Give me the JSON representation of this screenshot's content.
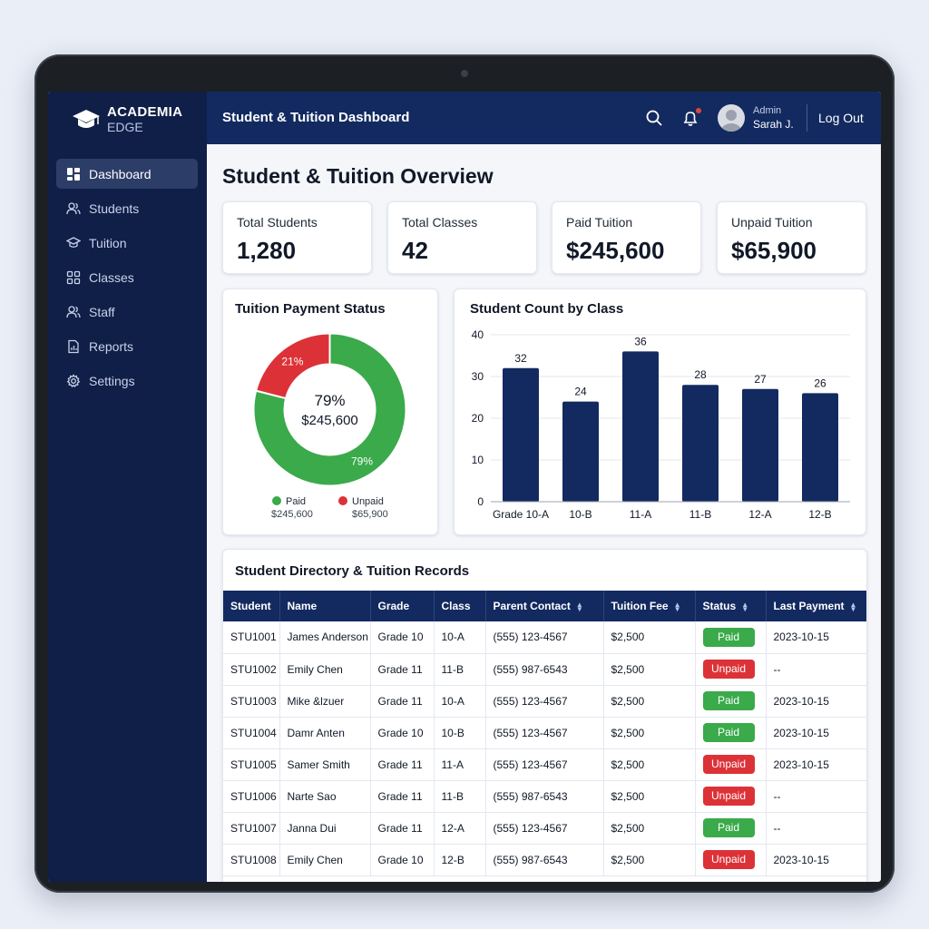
{
  "brand": {
    "line1": "ACADEMIA",
    "line2": "EDGE"
  },
  "sidebar": {
    "items": [
      {
        "label": "Dashboard",
        "icon": "dashboard-icon",
        "active": true
      },
      {
        "label": "Students",
        "icon": "users-icon"
      },
      {
        "label": "Tuition",
        "icon": "graduation-cap-icon"
      },
      {
        "label": "Classes",
        "icon": "grid-icon"
      },
      {
        "label": "Staff",
        "icon": "staff-icon"
      },
      {
        "label": "Reports",
        "icon": "report-icon"
      },
      {
        "label": "Settings",
        "icon": "gear-icon"
      }
    ]
  },
  "header": {
    "title": "Student & Tuition Dashboard",
    "user_role": "Admin",
    "user_name": "Sarah J.",
    "logout_label": "Log Out"
  },
  "main": {
    "title": "Student & Tuition Overview",
    "stats": [
      {
        "label": "Total Students",
        "value": "1,280"
      },
      {
        "label": "Total Classes",
        "value": "42"
      },
      {
        "label": "Paid Tuition",
        "value": "$245,600"
      },
      {
        "label": "Unpaid Tuition",
        "value": "$65,900"
      }
    ]
  },
  "colors": {
    "paid": "#3aaa4b",
    "unpaid": "#dc3237",
    "navy": "#132a60",
    "bar": "#132a60"
  },
  "chart_data": [
    {
      "type": "pie",
      "title": "Tuition Payment Status",
      "center_percent": "79%",
      "center_amount": "$245,600",
      "slices": [
        {
          "name": "Paid",
          "value": 79,
          "label": "79%",
          "amount": "$245,600"
        },
        {
          "name": "Unpaid",
          "value": 21,
          "label": "21%",
          "amount": "$65,900"
        }
      ]
    },
    {
      "type": "bar",
      "title": "Student Count by Class",
      "categories": [
        "Grade 10-A",
        "10-B",
        "11-A",
        "11-B",
        "12-A",
        "12-B"
      ],
      "values": [
        32,
        24,
        36,
        28,
        27,
        26
      ],
      "ylim": [
        0,
        40
      ],
      "yticks": [
        0,
        10,
        20,
        30,
        40
      ],
      "grid": true
    }
  ],
  "table": {
    "title": "Student Directory & Tuition Records",
    "columns": [
      "Student",
      "Name",
      "Grade",
      "Class",
      "Parent Contact",
      "Tuition Fee",
      "Status",
      "Last Payment"
    ],
    "rows": [
      [
        "STU1001",
        "James Anderson",
        "Grade 10",
        "10-A",
        "(555) 123-4567",
        "$2,500",
        "Paid",
        "2023-10-15"
      ],
      [
        "STU1002",
        "Emily Chen",
        "Grade 11",
        "11-B",
        "(555) 987-6543",
        "$2,500",
        "Unpaid",
        "--"
      ],
      [
        "STU1003",
        "Mike &lzuer",
        "Grade 11",
        "10-A",
        "(555) 123-4567",
        "$2,500",
        "Paid",
        "2023-10-15"
      ],
      [
        "STU1004",
        "Damr Anten",
        "Grade 10",
        "10-B",
        "(555) 123-4567",
        "$2,500",
        "Paid",
        "2023-10-15"
      ],
      [
        "STU1005",
        "Samer Smith",
        "Grade 11",
        "11-A",
        "(555) 123-4567",
        "$2,500",
        "Unpaid",
        "2023-10-15"
      ],
      [
        "STU1006",
        "Narte Sao",
        "Grade 11",
        "11-B",
        "(555) 987-6543",
        "$2,500",
        "Unpaid",
        "--"
      ],
      [
        "STU1007",
        "Janna Dui",
        "Grade 11",
        "12-A",
        "(555) 123-4567",
        "$2,500",
        "Paid",
        "--"
      ],
      [
        "STU1008",
        "Emily Chen",
        "Grade 10",
        "12-B",
        "(555) 987-6543",
        "$2,500",
        "Unpaid",
        "2023-10-15"
      ]
    ]
  }
}
